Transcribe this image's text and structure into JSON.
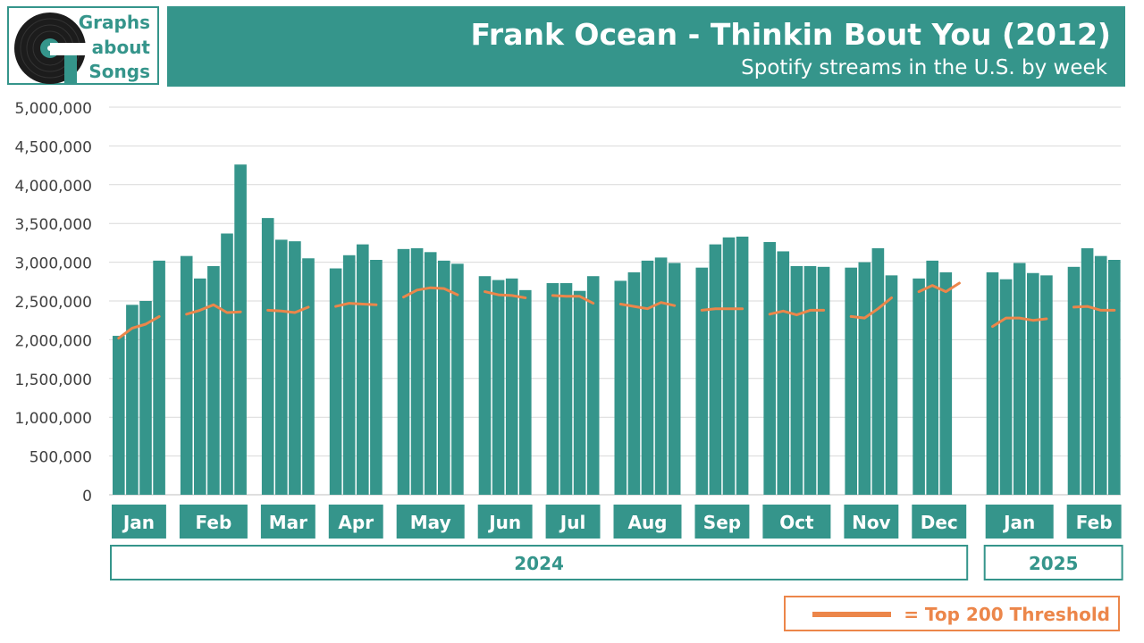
{
  "logo": {
    "line1": "Graphs",
    "line2": "about",
    "line3": "Songs"
  },
  "header": {
    "title": "Frank Ocean - Thinkin Bout You (2012)",
    "subtitle": "Spotify streams in the U.S. by week"
  },
  "legend": {
    "label": "= Top 200 Threshold"
  },
  "colors": {
    "bar": "#35958b",
    "threshold": "#ec864a",
    "grid": "#d9d9d9",
    "axis_text": "#404040"
  },
  "chart_data": {
    "type": "bar",
    "title": "Frank Ocean - Thinkin Bout You (2012)",
    "subtitle": "Spotify streams in the U.S. by week",
    "ylim": [
      0,
      5000000
    ],
    "yticks": [
      "0",
      "500,000",
      "1,000,000",
      "1,500,000",
      "2,000,000",
      "2,500,000",
      "3,000,000",
      "3,500,000",
      "4,000,000",
      "4,500,000",
      "5,000,000"
    ],
    "grid": true,
    "legend_position": "bottom-right",
    "months": [
      {
        "label": "Jan",
        "year": "2024",
        "streams": [
          2050000,
          2450000,
          2500000,
          3020000
        ],
        "threshold": [
          2020000,
          2150000,
          2200000,
          2300000
        ]
      },
      {
        "label": "Feb",
        "year": "2024",
        "streams": [
          3080000,
          2790000,
          2950000,
          3370000,
          4260000
        ],
        "threshold": [
          2330000,
          2380000,
          2450000,
          2350000,
          2360000
        ]
      },
      {
        "label": "Mar",
        "year": "2024",
        "streams": [
          3570000,
          3290000,
          3270000,
          3050000
        ],
        "threshold": [
          2380000,
          2370000,
          2350000,
          2420000
        ]
      },
      {
        "label": "Apr",
        "year": "2024",
        "streams": [
          2920000,
          3090000,
          3230000,
          3030000
        ],
        "threshold": [
          2430000,
          2470000,
          2460000,
          2450000
        ]
      },
      {
        "label": "May",
        "year": "2024",
        "streams": [
          3170000,
          3180000,
          3130000,
          3020000,
          2980000
        ],
        "threshold": [
          2550000,
          2640000,
          2670000,
          2660000,
          2580000
        ]
      },
      {
        "label": "Jun",
        "year": "2024",
        "streams": [
          2820000,
          2770000,
          2790000,
          2640000
        ],
        "threshold": [
          2620000,
          2580000,
          2570000,
          2540000
        ]
      },
      {
        "label": "Jul",
        "year": "2024",
        "streams": [
          2730000,
          2730000,
          2630000,
          2820000
        ],
        "threshold": [
          2570000,
          2560000,
          2560000,
          2470000
        ]
      },
      {
        "label": "Aug",
        "year": "2024",
        "streams": [
          2760000,
          2870000,
          3020000,
          3060000,
          2990000
        ],
        "threshold": [
          2460000,
          2430000,
          2400000,
          2480000,
          2440000
        ]
      },
      {
        "label": "Sep",
        "year": "2024",
        "streams": [
          2930000,
          3230000,
          3320000,
          3330000
        ],
        "threshold": [
          2380000,
          2400000,
          2400000,
          2400000
        ]
      },
      {
        "label": "Oct",
        "year": "2024",
        "streams": [
          3260000,
          3140000,
          2950000,
          2950000,
          2940000
        ],
        "threshold": [
          2330000,
          2370000,
          2320000,
          2380000,
          2380000
        ]
      },
      {
        "label": "Nov",
        "year": "2024",
        "streams": [
          2930000,
          3000000,
          3180000,
          2830000
        ],
        "threshold": [
          2300000,
          2280000,
          2400000,
          2540000
        ]
      },
      {
        "label": "Dec",
        "year": "2024",
        "streams": [
          2790000,
          3020000,
          2870000
        ],
        "threshold": [
          2620000,
          2700000,
          2620000,
          2730000
        ]
      },
      {
        "label": "Jan",
        "year": "2025",
        "streams": [
          2870000,
          2780000,
          2990000,
          2860000,
          2830000
        ],
        "threshold": [
          2170000,
          2280000,
          2280000,
          2250000,
          2270000
        ]
      },
      {
        "label": "Feb",
        "year": "2025",
        "streams": [
          2940000,
          3180000,
          3080000,
          3030000
        ],
        "threshold": [
          2420000,
          2430000,
          2380000,
          2380000
        ]
      }
    ],
    "years": [
      "2024",
      "2025"
    ]
  }
}
